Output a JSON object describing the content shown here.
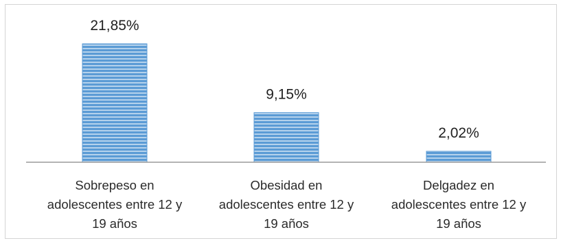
{
  "chart_data": {
    "type": "bar",
    "categories": [
      [
        "Sobrepeso en",
        "adolescentes entre 12 y",
        "19 años"
      ],
      [
        "Obesidad en",
        "adolescentes entre 12 y",
        "19 años"
      ],
      [
        "Delgadez en",
        "adolescentes entre 12 y",
        "19 años"
      ]
    ],
    "values": [
      21.85,
      9.15,
      2.02
    ],
    "value_labels": [
      "21,85%",
      "9,15%",
      "2,02%"
    ],
    "unit": "%",
    "ylim": [
      0,
      21.85
    ],
    "grid": false,
    "legend": "none",
    "title": "",
    "xlabel": "",
    "ylabel": "",
    "colors": {
      "bar_fill": "#5b9bd5",
      "bar_stripe": "#ffffff",
      "axis": "#9a9a9a",
      "text": "#222222"
    }
  }
}
